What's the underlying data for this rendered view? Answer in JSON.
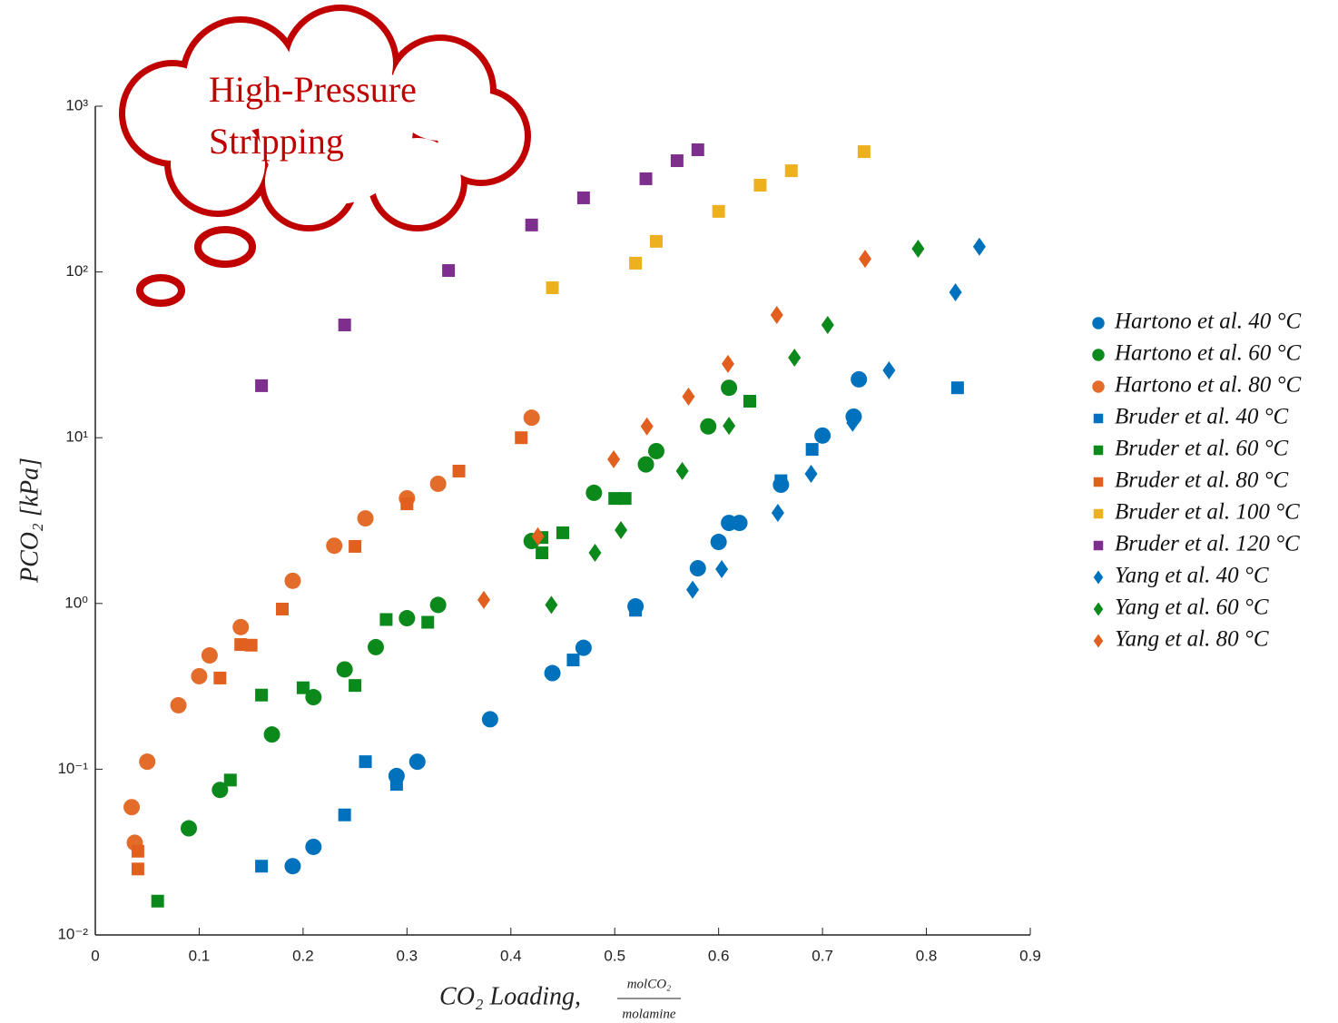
{
  "chart_data": {
    "type": "scatter",
    "annotation": {
      "lines": [
        "High-Pressure",
        "Stripping"
      ],
      "color": "#c00000"
    },
    "x_label": {
      "text": "CO₂ Loading,",
      "numerator": "molCO₂",
      "denominator": "molamine"
    },
    "y_label": "PCO₂ [kPa]",
    "xlim": [
      0,
      0.9
    ],
    "xticks": [
      0,
      0.1,
      0.2,
      0.3,
      0.4,
      0.5,
      0.6,
      0.7,
      0.8,
      0.9
    ],
    "ylim": [
      0.01,
      1000
    ],
    "log_y": true,
    "yticks": [
      {
        "value": 0.01,
        "label": "10⁻²"
      },
      {
        "value": 0.1,
        "label": "10⁻¹"
      },
      {
        "value": 1,
        "label": "10⁰"
      },
      {
        "value": 10,
        "label": "10¹"
      },
      {
        "value": 100,
        "label": "10²"
      },
      {
        "value": 1000,
        "label": "10³"
      }
    ],
    "legend": "right",
    "series": [
      {
        "name": "Hartono et al. 40 °C",
        "color": "#0072bd",
        "marker": "circle",
        "x": [
          0.19,
          0.21,
          0.29,
          0.31,
          0.38,
          0.44,
          0.47,
          0.52,
          0.58,
          0.6,
          0.61,
          0.62,
          0.66,
          0.7,
          0.73,
          0.735
        ],
        "values": [
          0.026,
          0.034,
          0.091,
          0.111,
          0.2,
          0.38,
          0.54,
          0.96,
          1.63,
          2.35,
          3.06,
          3.06,
          5.2,
          10.3,
          13.4,
          22.5
        ]
      },
      {
        "name": "Hartono et al. 60 °C",
        "color": "#0b8a1b",
        "marker": "circle",
        "x": [
          0.09,
          0.12,
          0.17,
          0.21,
          0.24,
          0.27,
          0.3,
          0.33,
          0.42,
          0.48,
          0.53,
          0.54,
          0.59,
          0.61
        ],
        "values": [
          0.044,
          0.075,
          0.162,
          0.272,
          0.4,
          0.545,
          0.815,
          0.98,
          2.38,
          4.65,
          6.9,
          8.3,
          11.7,
          20
        ]
      },
      {
        "name": "Hartono et al. 80 °C",
        "color": "#e46c2a",
        "marker": "circle",
        "x": [
          0.035,
          0.038,
          0.05,
          0.08,
          0.1,
          0.11,
          0.14,
          0.19,
          0.23,
          0.26,
          0.3,
          0.33,
          0.42
        ],
        "values": [
          0.059,
          0.036,
          0.111,
          0.243,
          0.364,
          0.486,
          0.72,
          1.37,
          2.23,
          3.26,
          4.31,
          5.27,
          13.2
        ]
      },
      {
        "name": "Bruder et al. 40 °C",
        "color": "#0072bd",
        "marker": "square",
        "x": [
          0.16,
          0.24,
          0.26,
          0.29,
          0.46,
          0.52,
          0.66,
          0.69,
          0.83
        ],
        "values": [
          0.026,
          0.053,
          0.111,
          0.081,
          0.456,
          0.91,
          5.5,
          8.5,
          20
        ]
      },
      {
        "name": "Bruder et al. 60 °C",
        "color": "#0b8a1b",
        "marker": "square",
        "x": [
          0.06,
          0.13,
          0.16,
          0.2,
          0.25,
          0.28,
          0.32,
          0.43,
          0.43,
          0.45,
          0.5,
          0.51,
          0.63
        ],
        "values": [
          0.016,
          0.086,
          0.28,
          0.31,
          0.32,
          0.8,
          0.77,
          2.5,
          2.02,
          2.67,
          4.3,
          4.3,
          16.6
        ]
      },
      {
        "name": "Bruder et al. 80 °C",
        "color": "#e2601f",
        "marker": "square",
        "x": [
          0.041,
          0.041,
          0.12,
          0.14,
          0.15,
          0.18,
          0.25,
          0.3,
          0.35,
          0.41
        ],
        "values": [
          0.032,
          0.025,
          0.355,
          0.565,
          0.56,
          0.925,
          2.21,
          3.99,
          6.29,
          10
        ]
      },
      {
        "name": "Bruder et al. 100 °C",
        "color": "#edb120",
        "marker": "square",
        "x": [
          0.44,
          0.52,
          0.54,
          0.6,
          0.64,
          0.67,
          0.74
        ],
        "values": [
          80.3,
          113,
          153,
          232,
          334,
          408,
          532
        ]
      },
      {
        "name": "Bruder et al. 120 °C",
        "color": "#7e2f8e",
        "marker": "square",
        "x": [
          0.16,
          0.24,
          0.34,
          0.42,
          0.47,
          0.53,
          0.56,
          0.58
        ],
        "values": [
          20.6,
          47.9,
          102,
          192,
          280,
          365,
          469,
          546
        ]
      },
      {
        "name": "Yang et al. 40 °C",
        "color": "#0072bd",
        "marker": "diamond",
        "x": [
          0.575,
          0.603,
          0.657,
          0.689,
          0.729,
          0.764,
          0.828,
          0.851
        ],
        "values": [
          1.21,
          1.61,
          3.52,
          6.05,
          12.3,
          25.5,
          75.4,
          142
        ]
      },
      {
        "name": "Yang et al. 60 °C",
        "color": "#0b8a1b",
        "marker": "diamond",
        "x": [
          0.439,
          0.481,
          0.506,
          0.565,
          0.61,
          0.673,
          0.705,
          0.792
        ],
        "values": [
          0.98,
          2.02,
          2.77,
          6.3,
          11.8,
          30.4,
          47.9,
          138
        ]
      },
      {
        "name": "Yang et al. 80 °C",
        "color": "#e2601f",
        "marker": "diamond",
        "x": [
          0.374,
          0.426,
          0.499,
          0.531,
          0.571,
          0.609,
          0.656,
          0.741
        ],
        "values": [
          1.05,
          2.54,
          7.41,
          11.7,
          17.7,
          27.9,
          55,
          120
        ]
      }
    ]
  }
}
